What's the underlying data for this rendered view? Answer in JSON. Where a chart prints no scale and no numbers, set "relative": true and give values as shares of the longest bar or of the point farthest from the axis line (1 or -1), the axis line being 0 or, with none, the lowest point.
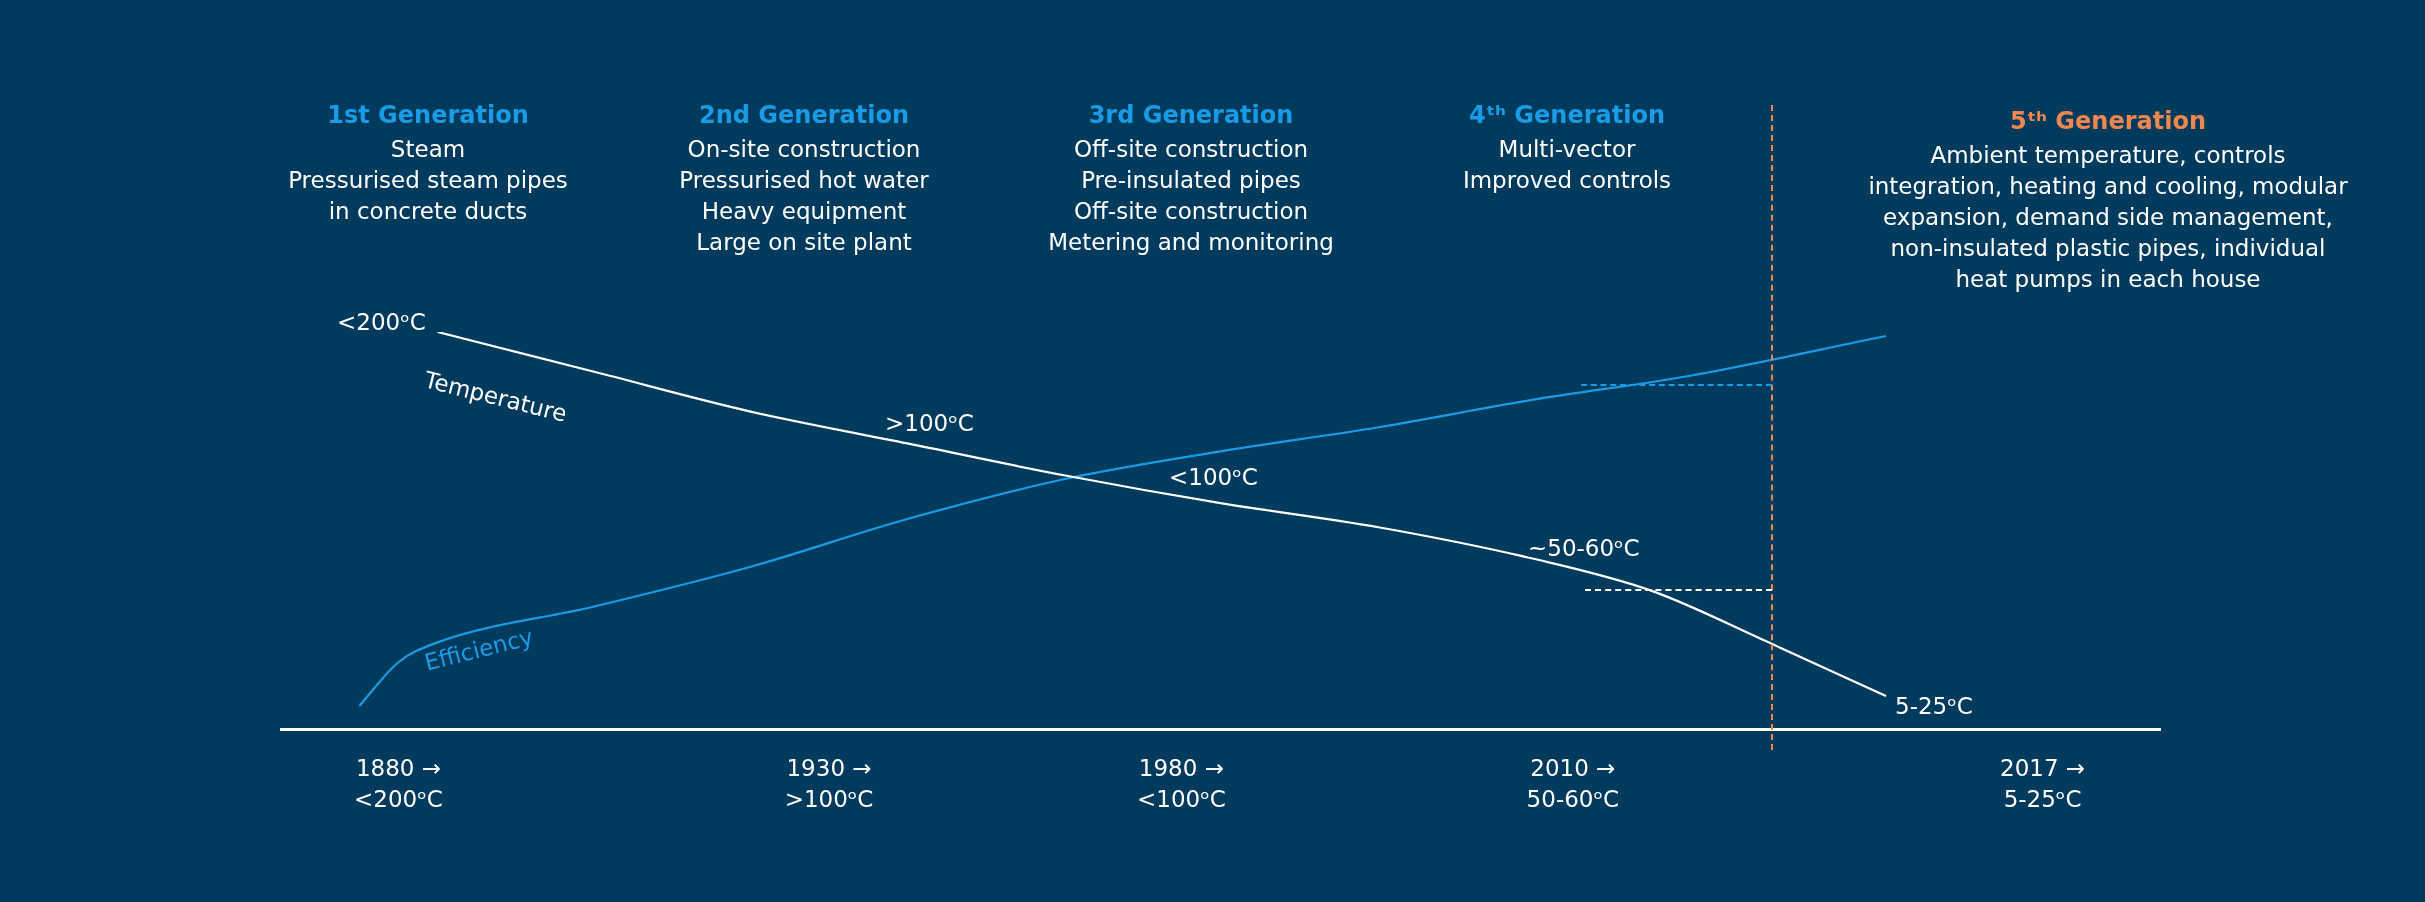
{
  "chart_data": {
    "type": "line",
    "relative": true,
    "marker": "none",
    "categories": [
      null,
      null,
      null,
      "1880 →\n<200ᵒC",
      null,
      null,
      null,
      null,
      null,
      null,
      null,
      null,
      null,
      null,
      "1930 →\n>100ᵒC",
      null,
      null,
      null,
      null,
      null,
      null,
      null,
      null,
      "1980 →\n<100ᵒC",
      null,
      null,
      null,
      null,
      null,
      null,
      null,
      null,
      null,
      "2010 →\n50-60ᵒC",
      null,
      null,
      null,
      null,
      null,
      null,
      null,
      null,
      null,
      null,
      null,
      "2017 →\n5-25ᵒC",
      null,
      null,
      null
    ],
    "series": [
      {
        "name": "Temperature",
        "color": "#ffffff",
        "values": [
          null,
          null,
          null,
          null,
          1.0,
          null,
          null,
          null,
          0.9,
          null,
          null,
          null,
          0.8,
          null,
          null,
          null,
          0.72,
          null,
          null,
          null,
          0.64,
          null,
          null,
          null,
          0.57,
          null,
          null,
          null,
          0.51,
          null,
          null,
          null,
          0.43,
          null,
          null,
          0.35,
          null,
          null,
          0.22,
          null,
          null,
          0.085,
          null,
          null,
          null,
          null,
          null,
          null,
          null
        ]
      },
      {
        "name": "Efficiency",
        "color": "#1a9be6",
        "values": [
          null,
          null,
          0.06,
          0.17,
          0.22,
          null,
          null,
          null,
          0.31,
          null,
          null,
          null,
          0.41,
          null,
          null,
          null,
          0.53,
          null,
          null,
          null,
          0.63,
          null,
          null,
          null,
          0.7,
          null,
          null,
          null,
          0.76,
          null,
          null,
          null,
          0.83,
          null,
          null,
          null,
          0.89,
          null,
          null,
          null,
          null,
          0.99,
          null,
          null,
          null,
          null,
          null,
          null,
          null
        ]
      }
    ],
    "annotations": [
      "1st Generation",
      "Steam\nPressurised steam pipes\nin concrete ducts",
      "2nd Generation",
      "On-site construction\nPressurised hot water\nHeavy equipment\nLarge on site plant",
      "3rd Generation",
      "Off-site construction\nPre-insulated pipes\nOff-site construction\nMetering and monitoring",
      "4ᵗʰ Generation",
      "Multi-vector\nImproved controls",
      "5ᵗʰ Generation",
      "Ambient temperature, controls integration, heating and cooling, modular expansion, demand side management, non-insulated plastic pipes, individual heat pumps in each house",
      "<200ᵒC",
      ">100ᵒC",
      "<100ᵒC",
      "~50-60ᵒC",
      "5-25ᵒC"
    ]
  }
}
